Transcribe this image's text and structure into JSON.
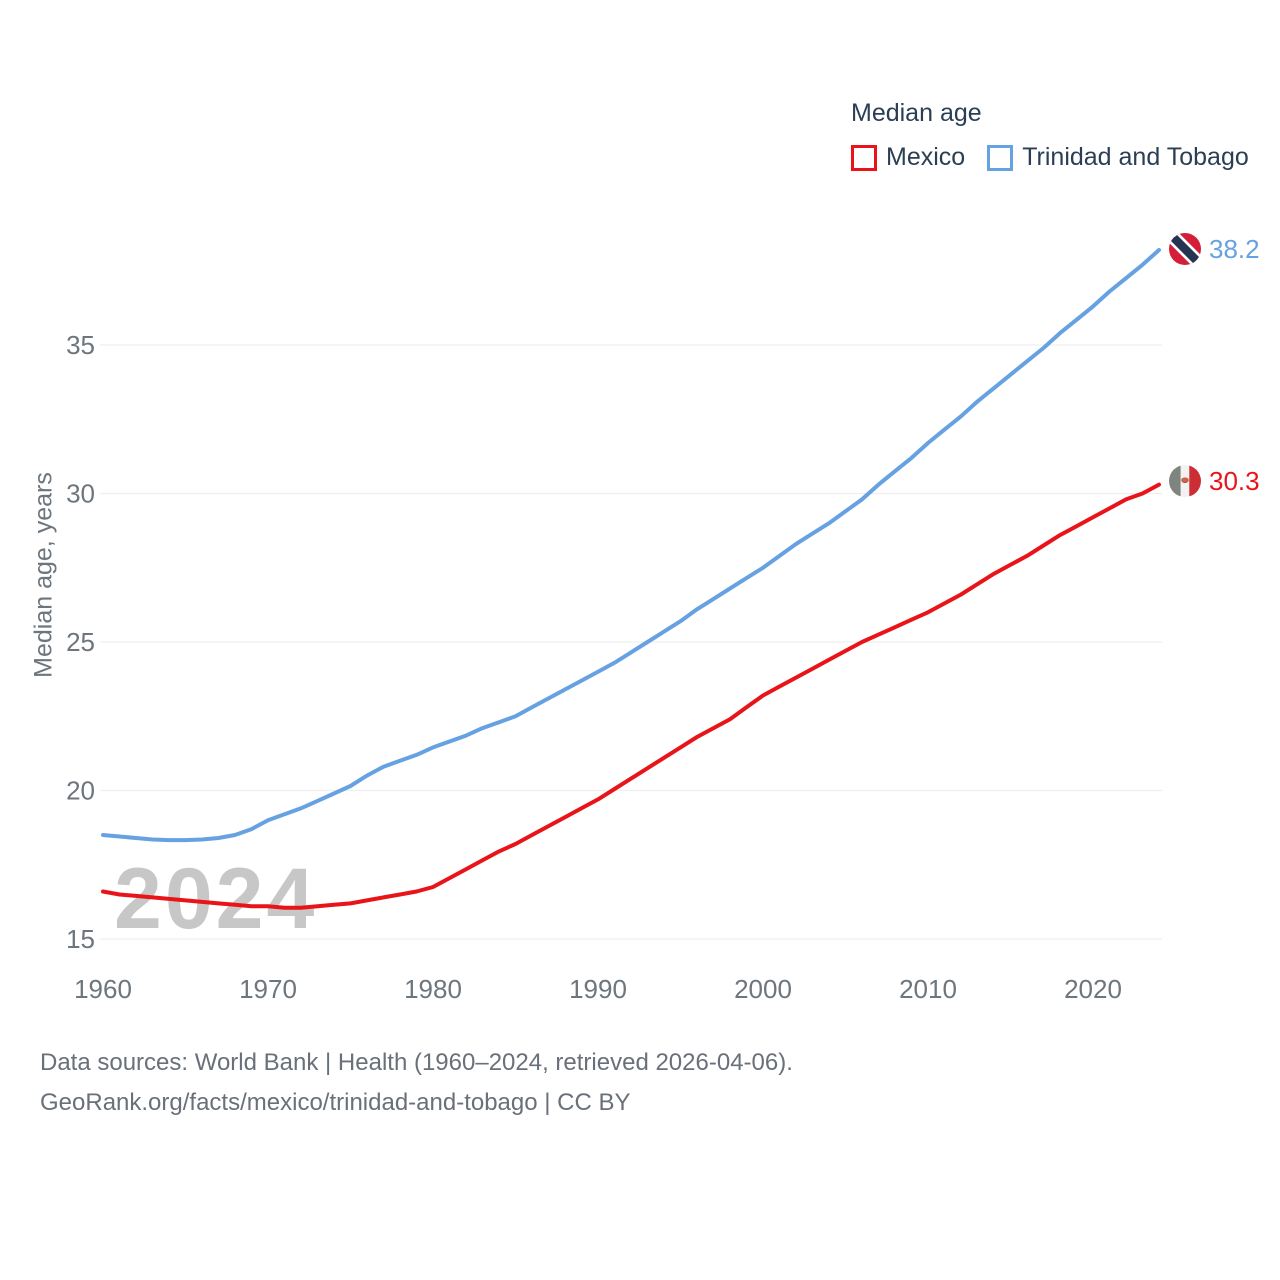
{
  "chart_data": {
    "type": "line",
    "title": "Median age",
    "ylabel": "Median age, years",
    "xlabel": "",
    "grid": true,
    "legend_position": "top-right",
    "watermark": "2024",
    "x_range": [
      1960,
      2024
    ],
    "x_ticks": [
      1960,
      1970,
      1980,
      1990,
      2000,
      2010,
      2020
    ],
    "y_ticks": [
      15,
      20,
      25,
      30,
      35
    ],
    "ylim": [
      15,
      40
    ],
    "x_step_years": 1,
    "series": [
      {
        "name": "Mexico",
        "color": "#e91419",
        "end_label": "30.3",
        "flag": "mexico-flag",
        "values": [
          16.6,
          16.5,
          16.45,
          16.4,
          16.35,
          16.3,
          16.25,
          16.2,
          16.15,
          16.1,
          16.1,
          16.05,
          16.05,
          16.1,
          16.15,
          16.2,
          16.3,
          16.4,
          16.5,
          16.6,
          16.75,
          17.05,
          17.35,
          17.65,
          17.95,
          18.2,
          18.5,
          18.8,
          19.1,
          19.4,
          19.7,
          20.05,
          20.4,
          20.75,
          21.1,
          21.45,
          21.8,
          22.1,
          22.4,
          22.8,
          23.2,
          23.5,
          23.8,
          24.1,
          24.4,
          24.7,
          25.0,
          25.25,
          25.5,
          25.75,
          26.0,
          26.3,
          26.6,
          26.95,
          27.3,
          27.6,
          27.9,
          28.25,
          28.6,
          28.9,
          29.2,
          29.5,
          29.8,
          30.0,
          30.3
        ]
      },
      {
        "name": "Trinidad and Tobago",
        "color": "#66a1e2",
        "end_label": "38.2",
        "flag": "trinidad-and-tobago-flag",
        "values": [
          18.5,
          18.45,
          18.4,
          18.35,
          18.33,
          18.33,
          18.35,
          18.4,
          18.5,
          18.7,
          19.0,
          19.2,
          19.4,
          19.65,
          19.9,
          20.15,
          20.5,
          20.8,
          21.0,
          21.2,
          21.45,
          21.65,
          21.85,
          22.1,
          22.3,
          22.5,
          22.8,
          23.1,
          23.4,
          23.7,
          24.0,
          24.3,
          24.65,
          25.0,
          25.35,
          25.7,
          26.1,
          26.45,
          26.8,
          27.15,
          27.5,
          27.9,
          28.3,
          28.65,
          29.0,
          29.4,
          29.8,
          30.3,
          30.75,
          31.2,
          31.7,
          32.15,
          32.6,
          33.1,
          33.55,
          34.0,
          34.45,
          34.9,
          35.4,
          35.85,
          36.3,
          36.8,
          37.25,
          37.7,
          38.2
        ]
      }
    ],
    "colors": {
      "grid": "#efefef",
      "axis_text": "#6d757d",
      "legend_text": "#2b3e54",
      "watermark": "#c7c7c7",
      "footer_text": "#697079"
    }
  },
  "footer": {
    "line1": "Data sources: World Bank | Health (1960–2024, retrieved 2026-04-06).",
    "line2": "GeoRank.org/facts/mexico/trinidad-and-tobago | CC BY"
  }
}
